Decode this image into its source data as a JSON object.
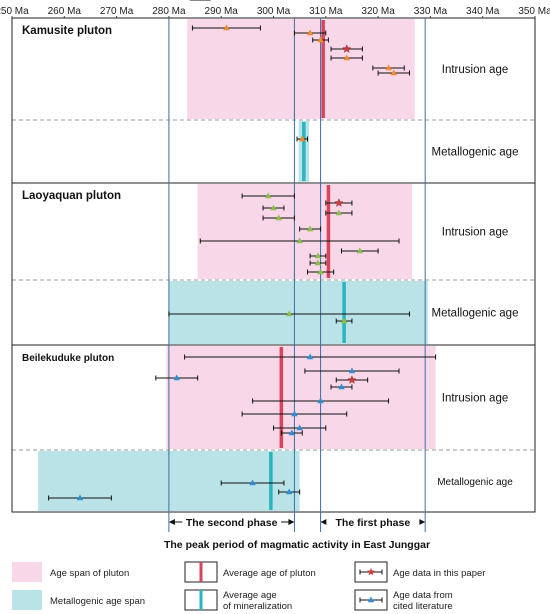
{
  "chart_data": {
    "type": "scatter",
    "xlim": [
      250,
      350
    ],
    "x_ticks": [
      "250 Ma",
      "260 Ma",
      "270 Ma",
      "280 Ma",
      "290 Ma",
      "300 Ma",
      "310 Ma",
      "320 Ma",
      "330 Ma",
      "340 Ma",
      "350 Ma"
    ],
    "colors": {
      "pluton_span": "#f8d7e8",
      "metallogenic_span": "#b9e3e6",
      "avg_pluton": "#d9445a",
      "avg_mineral": "#2bb3c0",
      "phase_line": "#3b6fa8",
      "star": "#d33b3b",
      "tri_orange": "#f08a2c",
      "tri_green": "#8dbd4b",
      "tri_blue": "#2f8fd6",
      "dashed": "#999999"
    },
    "phases": {
      "second": {
        "label": "The second phase",
        "range": [
          280,
          304
        ]
      },
      "first": {
        "label": "The first phase",
        "range": [
          309,
          329
        ]
      },
      "peak_label": "The peak period of magmatic activity in East Junggar"
    },
    "plutons": [
      {
        "title": "Kamusite pluton",
        "intrusion": {
          "label": "Intrusion age",
          "span": [
            283.5,
            327
          ],
          "avg": 309.5,
          "points": [
            {
              "age": 291,
              "err": 6.5,
              "marker": "tri_orange"
            },
            {
              "age": 307,
              "err": 3,
              "marker": "tri_orange"
            },
            {
              "age": 309,
              "err": 1.5,
              "marker": "tri_orange"
            },
            {
              "age": 314,
              "err": 3,
              "marker": "star"
            },
            {
              "age": 314,
              "err": 3,
              "marker": "tri_orange"
            },
            {
              "age": 322,
              "err": 3,
              "marker": "tri_orange"
            },
            {
              "age": 323,
              "err": 3,
              "marker": "tri_orange"
            }
          ]
        },
        "metallogenic": {
          "label": "Metallogenic age",
          "span": [
            304.8,
            306.8
          ],
          "avg": 305.8,
          "points": [
            {
              "age": 305.5,
              "err": 1,
              "marker": "tri_orange"
            }
          ]
        }
      },
      {
        "title": "Laoyaquan pluton",
        "intrusion": {
          "label": "Intrusion age",
          "span": [
            285.5,
            326.5
          ],
          "avg": 310.5,
          "points": [
            {
              "age": 299,
              "err": 5,
              "marker": "tri_green"
            },
            {
              "age": 312.5,
              "err": 2.5,
              "marker": "star"
            },
            {
              "age": 300,
              "err": 2,
              "marker": "tri_green"
            },
            {
              "age": 312.5,
              "err": 2.5,
              "marker": "tri_green"
            },
            {
              "age": 301,
              "err": 3,
              "marker": "tri_green"
            },
            {
              "age": 307,
              "err": 2,
              "marker": "tri_green"
            },
            {
              "age": 305,
              "err": 19,
              "marker": "tri_green"
            },
            {
              "age": 316.5,
              "err": 3.5,
              "marker": "tri_green"
            },
            {
              "age": 308.5,
              "err": 1.5,
              "marker": "tri_green"
            },
            {
              "age": 308.5,
              "err": 1.5,
              "marker": "tri_green"
            },
            {
              "age": 309,
              "err": 2.5,
              "marker": "tri_green"
            }
          ]
        },
        "metallogenic": {
          "label": "Metallogenic age",
          "span": [
            280,
            329.5
          ],
          "avg": 313.5,
          "points": [
            {
              "age": 303,
              "err": 23,
              "marker": "tri_green"
            },
            {
              "age": 313.5,
              "err": 1.5,
              "marker": "tri_green"
            }
          ]
        }
      },
      {
        "title": "Beilekuduke pluton",
        "title_small": true,
        "intrusion": {
          "label": "Intrusion age",
          "span": [
            279.5,
            331
          ],
          "avg": 301.5,
          "points": [
            {
              "age": 307,
              "err": 24,
              "marker": "tri_blue"
            },
            {
              "age": 315,
              "err": 9,
              "marker": "tri_blue"
            },
            {
              "age": 281.5,
              "err": 4,
              "marker": "tri_blue"
            },
            {
              "age": 315,
              "err": 3,
              "marker": "star"
            },
            {
              "age": 313,
              "err": 2,
              "marker": "tri_blue"
            },
            {
              "age": 309,
              "err": 13,
              "marker": "tri_blue"
            },
            {
              "age": 304,
              "err": 10,
              "marker": "tri_blue"
            },
            {
              "age": 305,
              "err": 5,
              "marker": "tri_blue"
            },
            {
              "age": 303.5,
              "err": 2,
              "marker": "tri_blue"
            },
            {
              "age": 286,
              "err": 2,
              "marker": "tri_blue"
            }
          ]
        },
        "metallogenic": {
          "label": "Metallogenic age",
          "label_small": true,
          "span": [
            255,
            305
          ],
          "avg": 299.5,
          "points": [
            {
              "age": 296,
              "err": 6,
              "marker": "tri_blue"
            },
            {
              "age": 303,
              "err": 2,
              "marker": "tri_blue"
            },
            {
              "age": 263,
              "err": 6,
              "marker": "tri_blue"
            }
          ]
        }
      }
    ],
    "legend": [
      {
        "label": "Age span of pluton",
        "kind": "span_pink"
      },
      {
        "label": "Average age of pluton",
        "kind": "avg_pluton"
      },
      {
        "label": "Age data in this paper",
        "kind": "star"
      },
      {
        "label": "Metallogenic age span",
        "kind": "span_cyan"
      },
      {
        "label": "Average age of mineralization",
        "kind": "avg_mineral"
      },
      {
        "label": "Age data from cited literature",
        "kind": "triangle"
      }
    ]
  }
}
